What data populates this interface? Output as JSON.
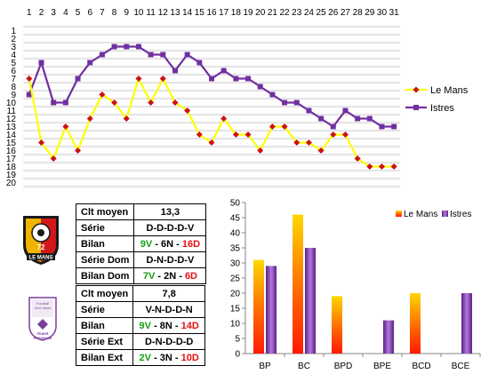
{
  "colors": {
    "le_mans": "#ffff00",
    "le_mans_marker": "#cc1111",
    "istres": "#7030a0",
    "green": "#14a014",
    "red": "#e01010"
  },
  "chart_data": [
    {
      "type": "line",
      "x": [
        1,
        2,
        3,
        4,
        5,
        6,
        7,
        8,
        9,
        10,
        11,
        12,
        13,
        14,
        15,
        16,
        17,
        18,
        19,
        20,
        21,
        22,
        23,
        24,
        25,
        26,
        27,
        28,
        29,
        30,
        31
      ],
      "ylim": [
        1,
        20
      ],
      "y_inverted": true,
      "series": [
        {
          "name": "Le Mans",
          "values": [
            7,
            15,
            17,
            13,
            16,
            12,
            9,
            10,
            12,
            7,
            10,
            7,
            10,
            11,
            14,
            15,
            12,
            14,
            14,
            16,
            13,
            13,
            15,
            15,
            16,
            14,
            14,
            17,
            18,
            18,
            18
          ]
        },
        {
          "name": "Istres",
          "values": [
            9,
            5,
            10,
            10,
            7,
            5,
            4,
            3,
            3,
            3,
            4,
            4,
            6,
            4,
            5,
            7,
            6,
            7,
            7,
            8,
            9,
            10,
            10,
            11,
            12,
            13,
            11,
            12,
            12,
            13,
            13
          ]
        }
      ],
      "legend": "right"
    },
    {
      "type": "bar",
      "categories": [
        "BP",
        "BC",
        "BPD",
        "BPE",
        "BCD",
        "BCE"
      ],
      "ylim": [
        0,
        50
      ],
      "yticks": [
        0,
        5,
        10,
        15,
        20,
        25,
        30,
        35,
        40,
        45,
        50
      ],
      "series": [
        {
          "name": "Le Mans",
          "values": [
            31,
            46,
            19,
            null,
            20,
            null
          ]
        },
        {
          "name": "Istres",
          "values": [
            29,
            35,
            null,
            11,
            null,
            20
          ]
        }
      ],
      "legend": "top-right"
    }
  ],
  "logos": {
    "le_mans": {
      "text": "LE MANS",
      "badge": "72"
    },
    "istres": {
      "lines": [
        "Football",
        "Club Istres",
        "Ouest",
        "Provence"
      ]
    }
  },
  "le_mans_table": {
    "rows": [
      {
        "label": "Clt moyen",
        "value": "13,3"
      },
      {
        "label": "Série",
        "value": "D-D-D-D-V"
      },
      {
        "label": "Bilan",
        "v": "9V",
        "n": "6N",
        "d": "16D"
      },
      {
        "label": "Série Dom",
        "value": "D-N-D-D-V"
      },
      {
        "label": "Bilan Dom",
        "v": "7V",
        "n": "2N",
        "d": "6D"
      }
    ]
  },
  "istres_table": {
    "rows": [
      {
        "label": "Clt moyen",
        "value": "7,8"
      },
      {
        "label": "Série",
        "value": "V-N-D-D-N"
      },
      {
        "label": "Bilan",
        "v": "9V",
        "n": "8N",
        "d": "14D"
      },
      {
        "label": "Série Ext",
        "value": "D-N-D-D-D"
      },
      {
        "label": "Bilan Ext",
        "v": "2V",
        "n": "3N",
        "d": "10D"
      }
    ]
  }
}
